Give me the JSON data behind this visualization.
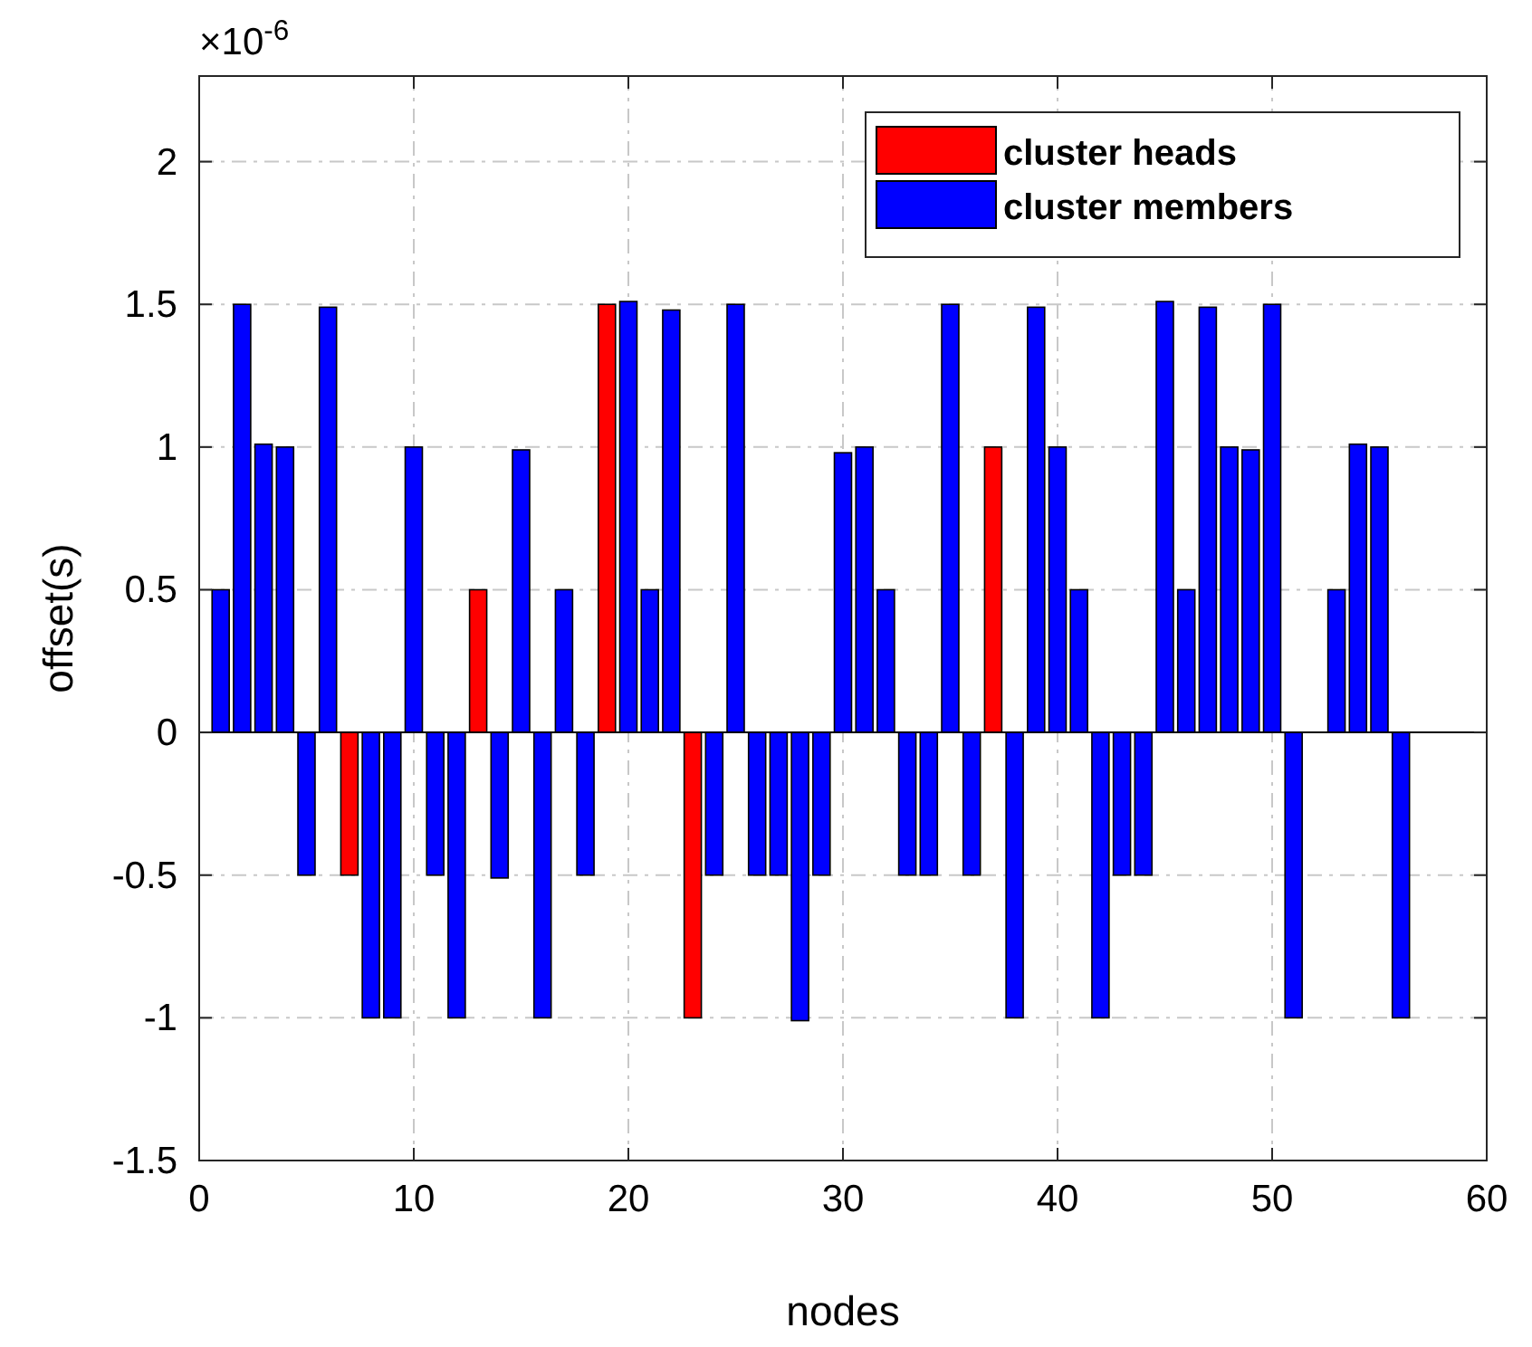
{
  "chart_data": {
    "type": "bar",
    "xlabel": "nodes",
    "ylabel": "offset(s)",
    "annotations": [
      "×10$^{-6}$"
    ],
    "series": [
      {
        "name": "cluster heads",
        "color": "#ff0000",
        "x": [
          7,
          13,
          19,
          23,
          37
        ],
        "values": [
          -0.5,
          0.5,
          1.5,
          -1,
          1.0
        ]
      },
      {
        "name": "cluster members",
        "color": "#0000ff",
        "x": [
          1,
          2,
          3,
          4,
          5,
          6,
          8,
          9,
          10,
          11,
          12,
          14,
          15,
          16,
          17,
          18,
          20,
          21,
          22,
          24,
          25,
          26,
          27,
          28,
          29,
          30,
          31,
          32,
          33,
          34,
          35,
          36,
          38,
          39,
          40,
          41,
          42,
          43,
          44,
          45,
          46,
          47,
          48,
          49,
          50,
          51,
          53,
          54,
          55,
          56
        ],
        "values": [
          0.5,
          1.5,
          1.01,
          1.0,
          -0.5,
          1.49,
          -1,
          -1,
          1.0,
          -0.5,
          -1,
          -0.51,
          0.99,
          -1,
          0.5,
          -0.5,
          1.51,
          0.5,
          1.48,
          -0.5,
          1.5,
          -0.5,
          -0.5,
          -1.01,
          -0.5,
          0.98,
          1.0,
          0.5,
          -0.5,
          -0.5,
          1.5,
          -0.5,
          -1,
          1.49,
          1.0,
          0.5,
          -1,
          -0.5,
          -0.5,
          1.51,
          0.5,
          1.49,
          1.0,
          0.99,
          1.5,
          -1,
          0.5,
          1.01,
          1.0,
          -1
        ]
      }
    ],
    "xlim": [
      0,
      60
    ],
    "xticks": [
      0,
      10,
      20,
      30,
      40,
      50,
      60
    ],
    "ylim": [
      -1.5,
      2.3
    ],
    "yticks": [
      -1.5,
      -1,
      -0.5,
      0,
      0.5,
      1,
      1.5,
      2
    ],
    "grid": true,
    "legend": "top right"
  }
}
